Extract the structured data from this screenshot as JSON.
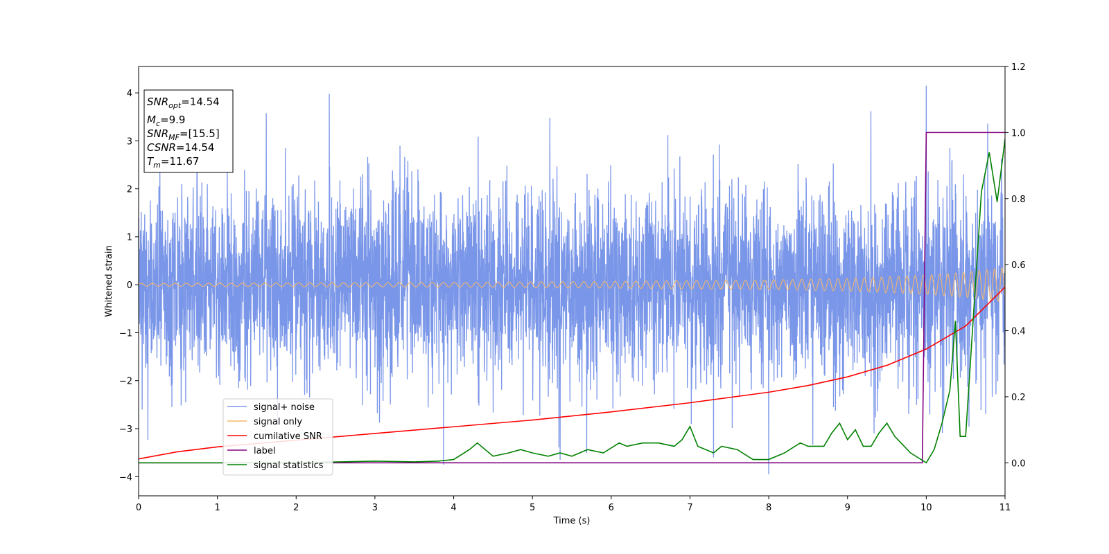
{
  "chart_data": {
    "type": "line",
    "xlabel": "Time (s)",
    "ylabel": "Whitened strain",
    "xlim": [
      0,
      11
    ],
    "ylim": [
      -4.4,
      4.55
    ],
    "y2lim": [
      -0.1,
      1.2
    ],
    "xticks": [
      0,
      1,
      2,
      3,
      4,
      5,
      6,
      7,
      8,
      9,
      10,
      11
    ],
    "yticks": [
      -4,
      -3,
      -2,
      -1,
      0,
      1,
      2,
      3,
      4
    ],
    "y2ticks": [
      "0.0",
      "0.2",
      "0.4",
      "0.6",
      "0.8",
      "1.0",
      "1.2"
    ],
    "legend_placement": "lower-left",
    "grid": false,
    "info_box": {
      "snr_opt": {
        "sym": "SNR",
        "sub": "opt",
        "value": "=14.54"
      },
      "mc": {
        "sym": "M",
        "sub": "c",
        "value": "=9.9"
      },
      "snr_mf": {
        "sym": "SNR",
        "sub": "MF",
        "value": "=[15.5]"
      },
      "csnr": {
        "sym": "CSNR",
        "value": "=14.54"
      },
      "tm": {
        "sym": "T",
        "sub": "m",
        "value": "=11.67"
      }
    },
    "series": [
      {
        "name": "signal+ noise",
        "color": "#7a96e8",
        "axis": "left",
        "description_range": [
          -3.95,
          4.15
        ],
        "spikes": [
          [
            1.62,
            3.58
          ],
          [
            2.42,
            3.98
          ],
          [
            10.0,
            4.15
          ],
          [
            10.78,
            3.36
          ],
          [
            8.0,
            -3.95
          ],
          [
            3.87,
            -3.75
          ],
          [
            5.35,
            -3.65
          ],
          [
            7.3,
            -3.6
          ]
        ]
      },
      {
        "name": "signal only",
        "color": "#f5b76a",
        "axis": "left",
        "envelope": [
          [
            0,
            0.03
          ],
          [
            2,
            0.04
          ],
          [
            4,
            0.05
          ],
          [
            6,
            0.07
          ],
          [
            8,
            0.1
          ],
          [
            9,
            0.13
          ],
          [
            10,
            0.2
          ],
          [
            10.5,
            0.26
          ],
          [
            11,
            0.36
          ]
        ]
      },
      {
        "name": "cumilative SNR",
        "color": "#ff0000",
        "axis": "left",
        "x": [
          0,
          0.5,
          1,
          2,
          3,
          4,
          5,
          6,
          7,
          8,
          8.5,
          9,
          9.5,
          10,
          10.5,
          11
        ],
        "values": [
          -3.63,
          -3.48,
          -3.38,
          -3.24,
          -3.1,
          -2.96,
          -2.82,
          -2.65,
          -2.46,
          -2.24,
          -2.1,
          -1.92,
          -1.68,
          -1.34,
          -0.86,
          -0.05
        ]
      },
      {
        "name": "label",
        "color": "#800080",
        "axis": "right",
        "x": [
          0,
          9.95,
          10.0,
          11
        ],
        "values": [
          0.0,
          0.0,
          1.0,
          1.0
        ]
      },
      {
        "name": "signal statistics",
        "color": "#008000",
        "axis": "right",
        "x": [
          0,
          2,
          3,
          3.5,
          3.8,
          4.0,
          4.2,
          4.3,
          4.5,
          4.7,
          4.85,
          5.0,
          5.2,
          5.35,
          5.5,
          5.7,
          5.9,
          6.1,
          6.2,
          6.4,
          6.6,
          6.8,
          6.9,
          7.0,
          7.1,
          7.2,
          7.3,
          7.4,
          7.6,
          7.8,
          8.0,
          8.2,
          8.4,
          8.5,
          8.7,
          8.8,
          8.9,
          9.0,
          9.1,
          9.2,
          9.3,
          9.4,
          9.5,
          9.6,
          9.8,
          10.0,
          10.1,
          10.2,
          10.3,
          10.37,
          10.43,
          10.5,
          10.6,
          10.7,
          10.8,
          10.9,
          11.0
        ],
        "values": [
          0.0,
          0.0,
          0.005,
          0.003,
          0.005,
          0.01,
          0.04,
          0.06,
          0.02,
          0.03,
          0.04,
          0.03,
          0.02,
          0.03,
          0.02,
          0.04,
          0.03,
          0.06,
          0.05,
          0.06,
          0.06,
          0.05,
          0.07,
          0.11,
          0.05,
          0.04,
          0.03,
          0.05,
          0.04,
          0.01,
          0.01,
          0.03,
          0.06,
          0.05,
          0.05,
          0.09,
          0.12,
          0.07,
          0.1,
          0.05,
          0.05,
          0.09,
          0.12,
          0.08,
          0.03,
          0.0,
          0.04,
          0.12,
          0.22,
          0.43,
          0.08,
          0.08,
          0.45,
          0.82,
          0.94,
          0.79,
          0.98
        ]
      }
    ]
  }
}
